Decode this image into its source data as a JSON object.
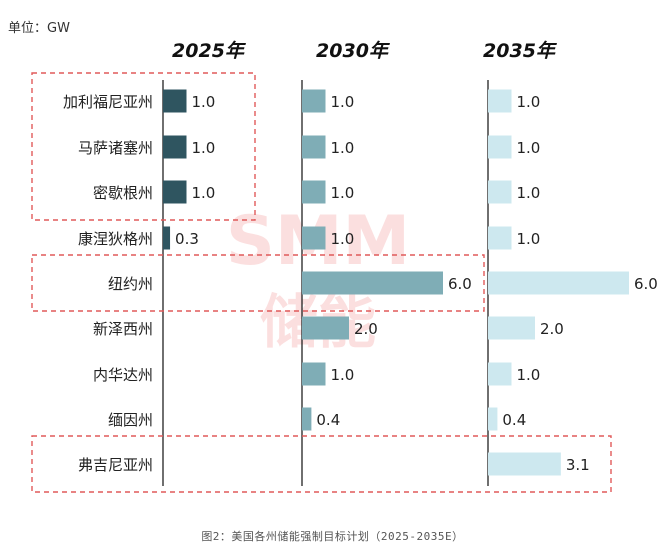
{
  "unit_label": "单位：GW",
  "caption": "图2：美国各州储能强制目标计划（2025-2035E）",
  "watermark": {
    "top": "SMM",
    "bottom": "储能"
  },
  "chart_data": {
    "type": "bar",
    "orientation": "horizontal",
    "categories": [
      "加利福尼亚州",
      "马萨诸塞州",
      "密歇根州",
      "康涅狄格州",
      "纽约州",
      "新泽西州",
      "内华达州",
      "缅因州",
      "弗吉尼亚州"
    ],
    "series": [
      {
        "name": "2025年",
        "color": "#2f5560",
        "values": [
          1.0,
          1.0,
          1.0,
          0.3,
          null,
          null,
          null,
          null,
          null
        ]
      },
      {
        "name": "2030年",
        "color": "#7fadb6",
        "values": [
          1.0,
          1.0,
          1.0,
          1.0,
          6.0,
          2.0,
          1.0,
          0.4,
          null
        ]
      },
      {
        "name": "2035年",
        "color": "#cde8ef",
        "values": [
          1.0,
          1.0,
          1.0,
          1.0,
          6.0,
          2.0,
          1.0,
          0.4,
          3.1
        ]
      }
    ],
    "value_format": "0.0",
    "highlighted_groups": [
      {
        "panel": 0,
        "rows": [
          0,
          2
        ]
      },
      {
        "panel": 1,
        "rows": [
          4,
          4
        ]
      },
      {
        "panel": 2,
        "rows": [
          8,
          8
        ]
      }
    ]
  }
}
